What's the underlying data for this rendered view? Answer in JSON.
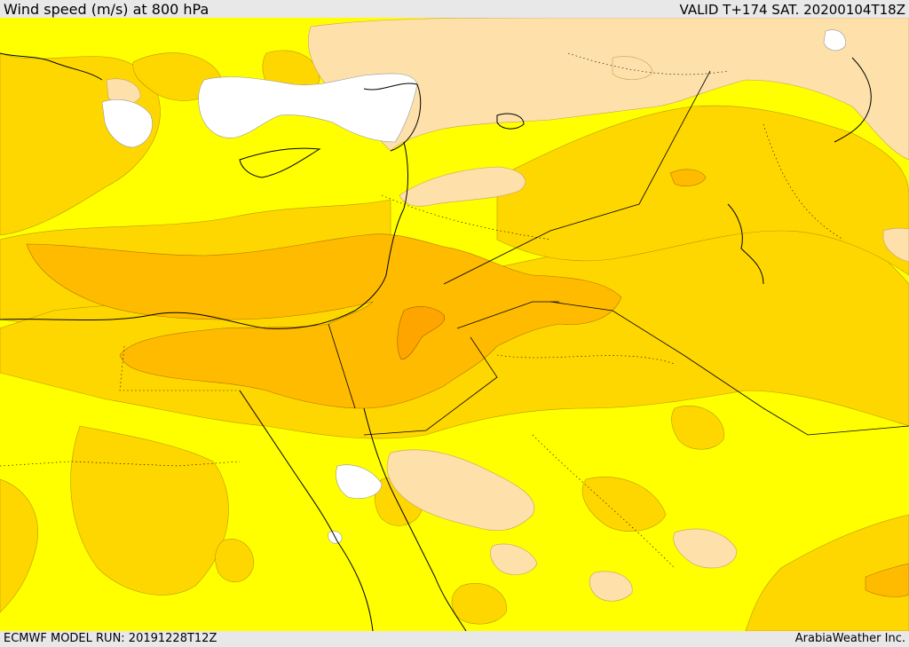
{
  "header": {
    "title": "Wind speed (m/s) at 800 hPa",
    "valid": "VALID T+174 SAT. 20200104T18Z"
  },
  "footer": {
    "model_run": "ECMWF MODEL RUN: 20191228T12Z",
    "credit": "ArabiaWeather Inc."
  },
  "map": {
    "field": "wind-speed-800hPa",
    "colors": {
      "calm": "#ffffff",
      "light": "#fde0aa",
      "moderate": "#ffff00",
      "fresh": "#ffd700",
      "strong": "#ffbb00",
      "very_strong": "#ffa500",
      "coast": "#000000"
    }
  }
}
